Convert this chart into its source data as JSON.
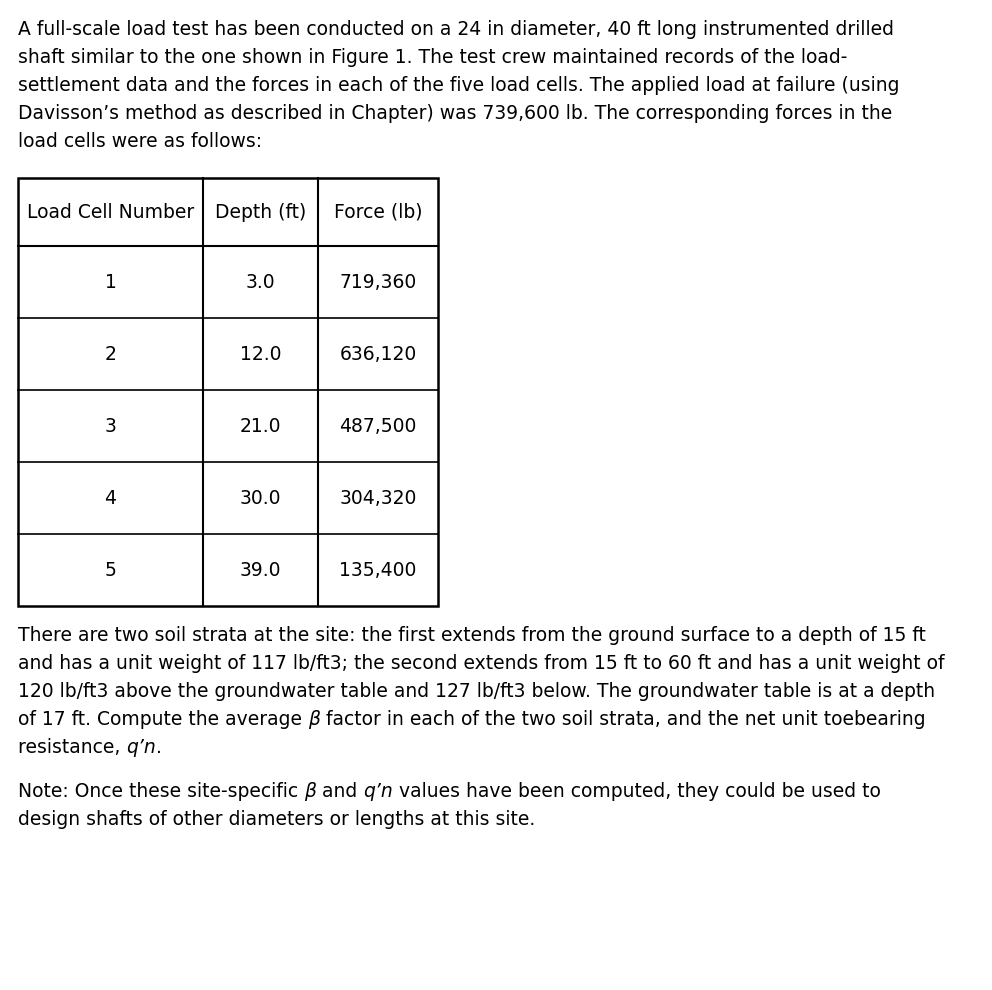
{
  "paragraph1": "A full-scale load test has been conducted on a 24 in diameter, 40 ft long instrumented drilled shaft similar to the one shown in Figure 1. The test crew maintained records of the load-settlement data and the forces in each of the five load cells. The applied load at failure (using Davisson’s method as described in Chapter) was 739,600 lb. The corresponding forces in the load cells were as follows:",
  "table_headers": [
    "Load Cell Number",
    "Depth (ft)",
    "Force (lb)"
  ],
  "table_rows": [
    [
      "1",
      "3.0",
      "719,360"
    ],
    [
      "2",
      "12.0",
      "636,120"
    ],
    [
      "3",
      "21.0",
      "487,500"
    ],
    [
      "4",
      "30.0",
      "304,320"
    ],
    [
      "5",
      "39.0",
      "135,400"
    ]
  ],
  "paragraph2_line1": "There are two soil strata at the site: the first extends from the ground surface to a depth of 15 ft",
  "paragraph2_line2": "and has a unit weight of 117 lb/ft3; the second extends from 15 ft to 60 ft and has a unit weight of",
  "paragraph2_line3": "120 lb/ft3 above the groundwater table and 127 lb/ft3 below. The groundwater table is at a depth",
  "paragraph2_line4_parts": [
    {
      "text": "of 17 ft. Compute the average ",
      "italic": false
    },
    {
      "text": "β",
      "italic": true
    },
    {
      "text": " factor in each of the two soil strata, and the net unit toebearing",
      "italic": false
    }
  ],
  "paragraph2_line5_parts": [
    {
      "text": "resistance, ",
      "italic": false
    },
    {
      "text": "q’n",
      "italic": true
    },
    {
      "text": ".",
      "italic": false
    }
  ],
  "paragraph3_parts": [
    {
      "text": "Note: Once these site-specific ",
      "italic": false
    },
    {
      "text": "β",
      "italic": true
    },
    {
      "text": " and ",
      "italic": false
    },
    {
      "text": "q’n",
      "italic": true
    },
    {
      "text": " values have been computed, they could be used to",
      "italic": false
    }
  ],
  "paragraph3_line2": "design shafts of other diameters or lengths at this site.",
  "bg_color": "#ffffff",
  "text_color": "#000000",
  "font_size": 13.5,
  "line_color": "#000000"
}
